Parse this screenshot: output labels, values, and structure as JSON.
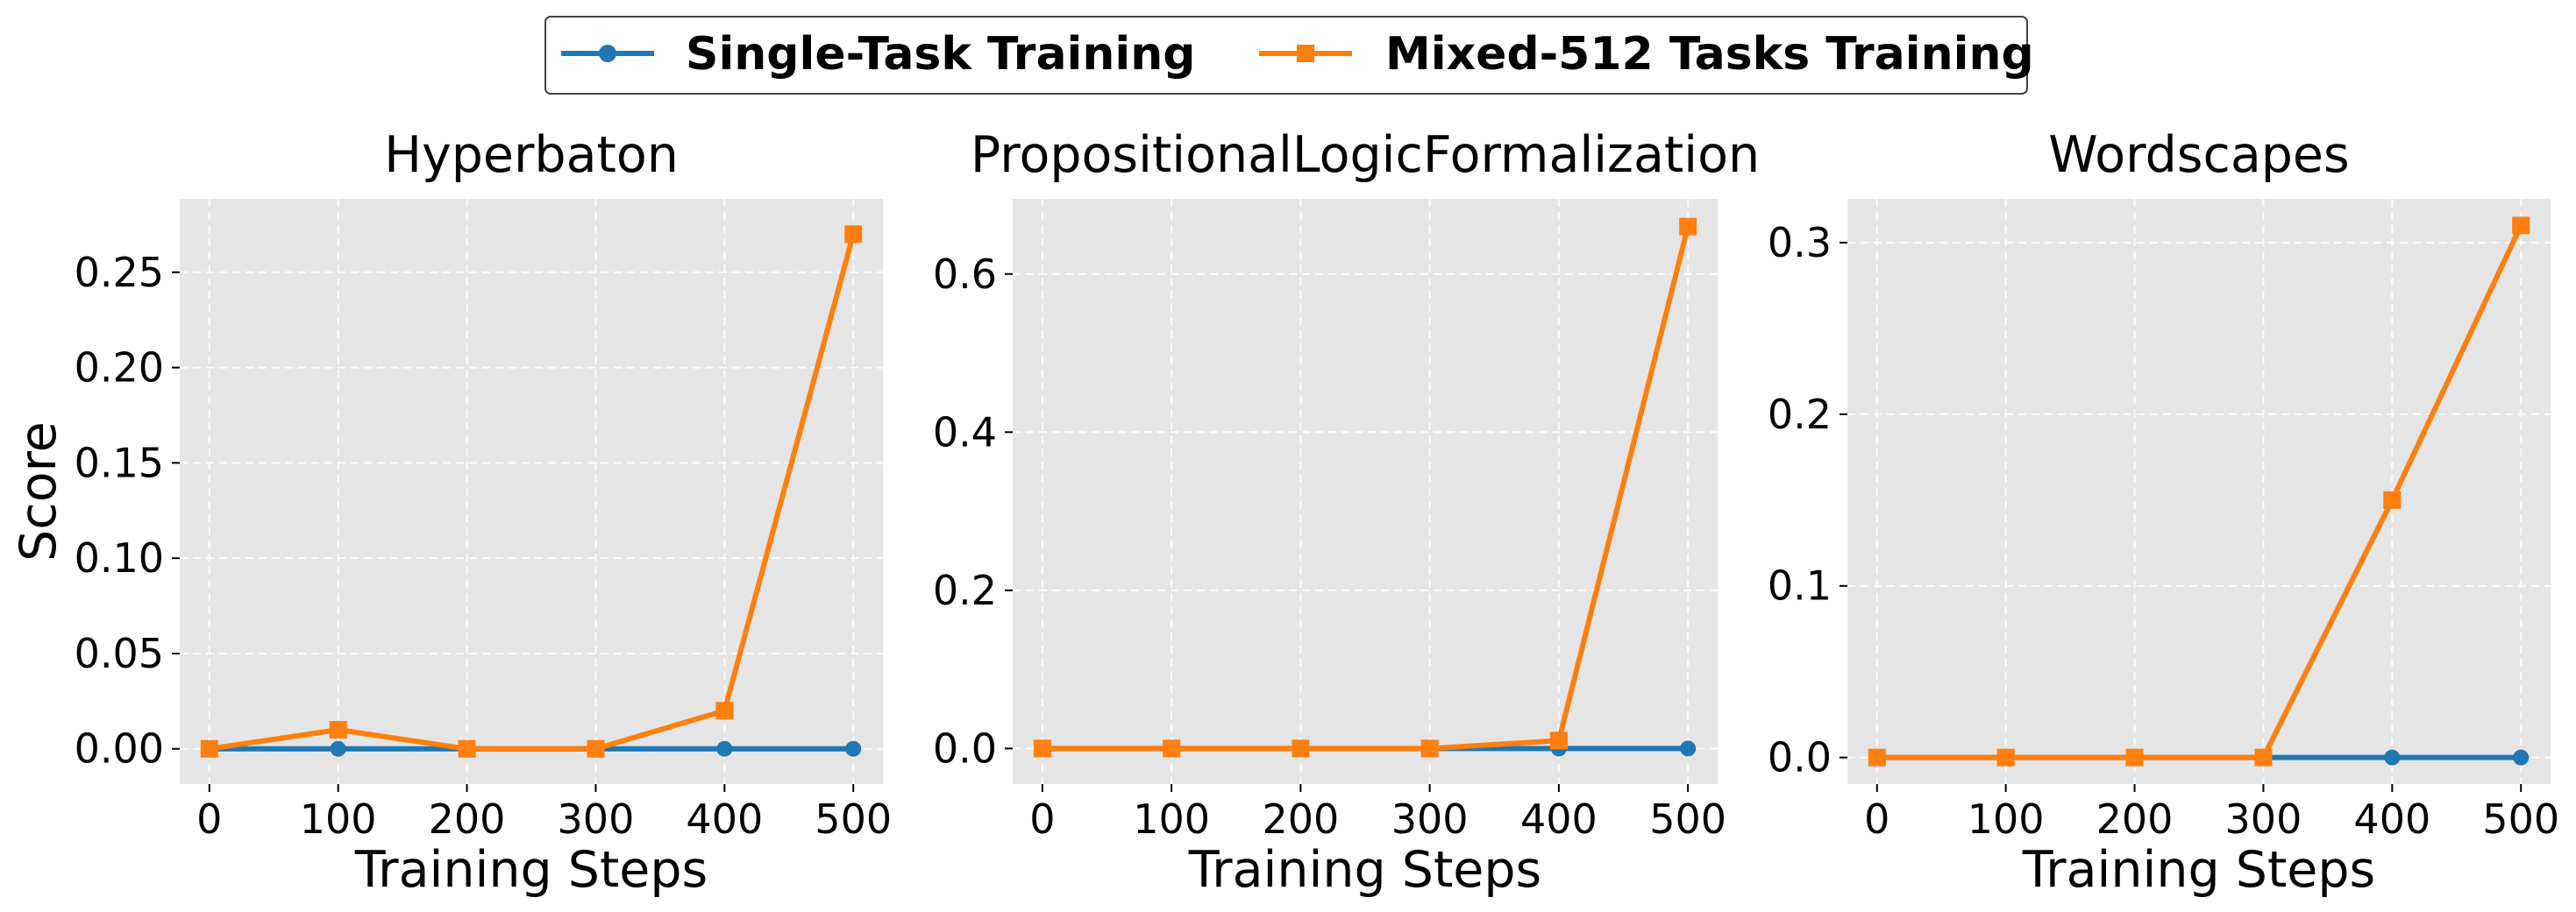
{
  "legend": {
    "items": [
      {
        "label": "Single-Task Training",
        "color": "#1f77b4",
        "marker": "circle"
      },
      {
        "label": "Mixed-512 Tasks Training",
        "color": "#ff7f0e",
        "marker": "square"
      }
    ]
  },
  "chart_data": [
    {
      "type": "line",
      "title": "Hyperbaton",
      "xlabel": "Training Steps",
      "ylabel": "Score",
      "x": [
        0,
        100,
        200,
        300,
        400,
        500
      ],
      "xticks": [
        "0",
        "100",
        "200",
        "300",
        "400",
        "500"
      ],
      "yticks": [
        "0.00",
        "0.05",
        "0.10",
        "0.15",
        "0.20",
        "0.25"
      ],
      "ytick_values": [
        0,
        0.05,
        0.1,
        0.15,
        0.2,
        0.25
      ],
      "xlim": [
        -23,
        523
      ],
      "ylim": [
        -0.0185,
        0.2885
      ],
      "grid": true,
      "series": [
        {
          "name": "Single-Task Training",
          "color": "#1f77b4",
          "marker": "circle",
          "values": [
            0,
            0,
            0,
            0,
            0,
            0
          ]
        },
        {
          "name": "Mixed-512 Tasks Training",
          "color": "#ff7f0e",
          "marker": "square",
          "values": [
            0,
            0.01,
            0,
            0,
            0.02,
            0.27
          ]
        }
      ]
    },
    {
      "type": "line",
      "title": "PropositionalLogicFormalization",
      "xlabel": "Training Steps",
      "ylabel": "",
      "x": [
        0,
        100,
        200,
        300,
        400,
        500
      ],
      "xticks": [
        "0",
        "100",
        "200",
        "300",
        "400",
        "500"
      ],
      "yticks": [
        "0.0",
        "0.2",
        "0.4",
        "0.6"
      ],
      "ytick_values": [
        0,
        0.2,
        0.4,
        0.6
      ],
      "xlim": [
        -23,
        523
      ],
      "ylim": [
        -0.045,
        0.695
      ],
      "grid": true,
      "series": [
        {
          "name": "Single-Task Training",
          "color": "#1f77b4",
          "marker": "circle",
          "values": [
            0,
            0,
            0,
            0,
            0,
            0
          ]
        },
        {
          "name": "Mixed-512 Tasks Training",
          "color": "#ff7f0e",
          "marker": "square",
          "values": [
            0,
            0,
            0,
            0,
            0.01,
            0.66
          ]
        }
      ]
    },
    {
      "type": "line",
      "title": "Wordscapes",
      "xlabel": "Training Steps",
      "ylabel": "",
      "x": [
        0,
        100,
        200,
        300,
        400,
        500
      ],
      "xticks": [
        "0",
        "100",
        "200",
        "300",
        "400",
        "500"
      ],
      "yticks": [
        "0.0",
        "0.1",
        "0.2",
        "0.3"
      ],
      "ytick_values": [
        0,
        0.1,
        0.2,
        0.3
      ],
      "xlim": [
        -23,
        523
      ],
      "ylim": [
        -0.0155,
        0.3255
      ],
      "grid": true,
      "series": [
        {
          "name": "Single-Task Training",
          "color": "#1f77b4",
          "marker": "circle",
          "values": [
            0,
            0,
            0,
            0,
            0,
            0
          ]
        },
        {
          "name": "Mixed-512 Tasks Training",
          "color": "#ff7f0e",
          "marker": "square",
          "values": [
            0,
            0,
            0,
            0,
            0.15,
            0.31
          ]
        }
      ]
    }
  ]
}
